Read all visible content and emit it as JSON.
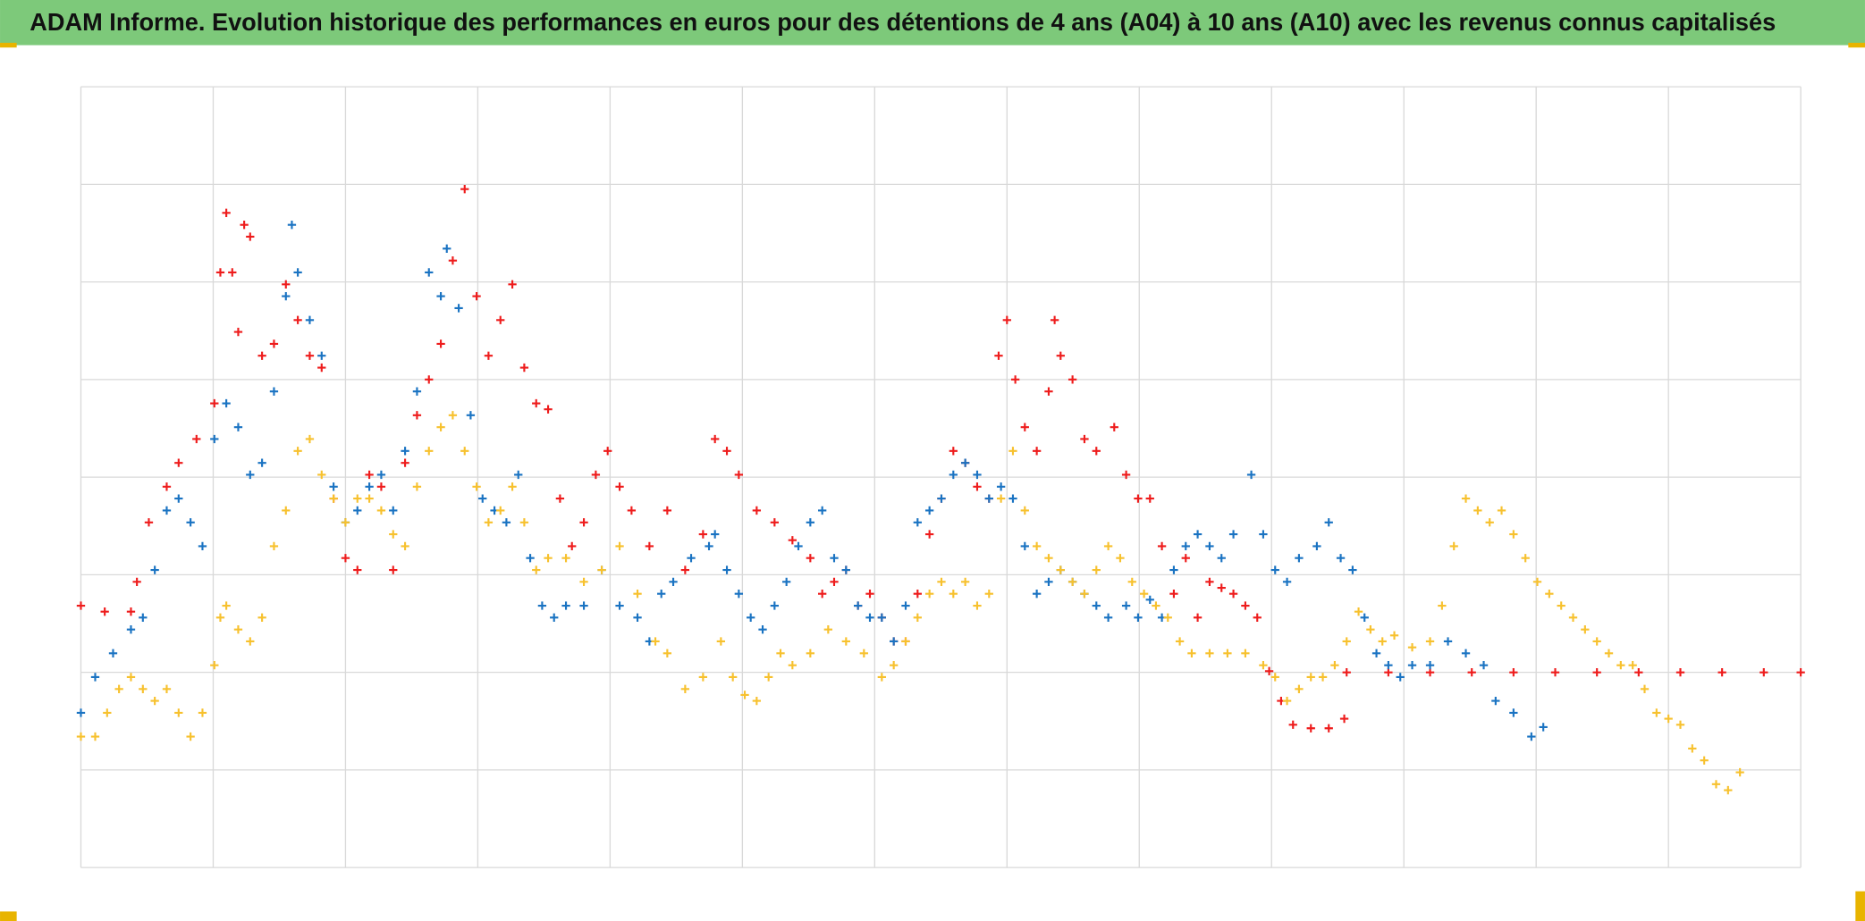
{
  "chart_data": {
    "type": "scatter",
    "title": "ADAM Informe. Evolution historique des performances en euros pour des détentions de 4 ans (A04) à 10 ans (A10) avec les revenus connus capitalisés",
    "xlim": [
      0,
      1443
    ],
    "xticks": [
      0,
      111,
      222,
      333,
      444,
      555,
      666,
      777,
      888,
      999,
      1110,
      1221,
      1332,
      1443
    ],
    "ylim": [
      0,
      656
    ],
    "yticks": [
      0,
      82,
      164,
      246,
      328,
      410,
      492,
      574,
      656
    ],
    "grid": true,
    "marker": "plus",
    "series": [
      {
        "color": "#ee1c1c",
        "x": [
          0,
          20,
          42,
          47,
          57,
          72,
          82,
          97,
          112,
          117,
          122,
          127,
          132,
          137,
          142,
          152,
          162,
          172,
          182,
          192,
          202,
          212,
          222,
          232,
          242,
          252,
          262,
          272,
          282,
          292,
          302,
          312,
          322,
          332,
          342,
          352,
          362,
          372,
          382,
          392,
          402,
          412,
          422,
          432,
          442,
          452,
          462,
          477,
          492,
          507,
          522,
          532,
          542,
          552,
          567,
          582,
          597,
          612,
          622,
          632,
          642,
          652,
          662,
          672,
          682,
          692,
          702,
          712,
          722,
          732,
          742,
          752,
          762,
          770,
          777,
          784,
          792,
          802,
          812,
          817,
          822,
          832,
          842,
          852,
          867,
          877,
          887,
          897,
          907,
          917,
          927,
          937,
          947,
          957,
          967,
          977,
          987,
          997,
          1007,
          1017,
          1032,
          1047,
          1060,
          1062,
          1097,
          1132,
          1167,
          1202,
          1237,
          1272,
          1307,
          1342,
          1377,
          1412,
          1443
        ],
        "values": [
          220,
          215,
          215,
          240,
          290,
          320,
          340,
          360,
          390,
          500,
          550,
          500,
          450,
          540,
          530,
          430,
          440,
          490,
          460,
          430,
          420,
          310,
          260,
          250,
          330,
          320,
          250,
          340,
          380,
          410,
          440,
          510,
          570,
          480,
          430,
          460,
          490,
          420,
          390,
          385,
          310,
          270,
          290,
          330,
          350,
          320,
          300,
          270,
          300,
          250,
          280,
          360,
          350,
          330,
          300,
          290,
          275,
          260,
          230,
          240,
          250,
          220,
          230,
          210,
          190,
          190,
          230,
          280,
          310,
          350,
          340,
          320,
          310,
          430,
          460,
          410,
          370,
          350,
          400,
          460,
          430,
          410,
          360,
          350,
          370,
          330,
          310,
          310,
          270,
          230,
          260,
          210,
          240,
          235,
          230,
          220,
          210,
          165,
          140,
          120,
          117,
          117,
          125,
          164,
          164,
          164,
          164,
          164,
          164,
          164,
          164,
          164,
          164,
          164,
          164
        ]
      },
      {
        "color": "#1a73c2",
        "x": [
          0,
          12,
          27,
          42,
          52,
          62,
          72,
          82,
          92,
          102,
          112,
          122,
          132,
          142,
          152,
          162,
          172,
          177,
          182,
          192,
          202,
          212,
          222,
          232,
          242,
          252,
          262,
          272,
          282,
          292,
          302,
          307,
          317,
          327,
          337,
          347,
          357,
          367,
          377,
          387,
          397,
          407,
          422,
          437,
          452,
          467,
          477,
          487,
          497,
          512,
          527,
          532,
          542,
          552,
          562,
          572,
          582,
          592,
          602,
          612,
          622,
          632,
          642,
          652,
          662,
          672,
          682,
          692,
          702,
          712,
          722,
          732,
          742,
          752,
          762,
          772,
          782,
          792,
          802,
          812,
          822,
          832,
          842,
          852,
          862,
          877,
          887,
          897,
          907,
          917,
          927,
          937,
          947,
          957,
          967,
          982,
          992,
          1002,
          1012,
          1022,
          1037,
          1047,
          1057,
          1067,
          1077,
          1087,
          1097,
          1107,
          1117,
          1132,
          1147,
          1162,
          1177,
          1187,
          1202,
          1217,
          1227
        ],
        "values": [
          130,
          160,
          180,
          200,
          210,
          250,
          300,
          310,
          290,
          270,
          360,
          390,
          370,
          330,
          340,
          400,
          480,
          540,
          500,
          460,
          430,
          320,
          290,
          300,
          320,
          330,
          300,
          350,
          400,
          500,
          480,
          520,
          470,
          380,
          310,
          300,
          290,
          330,
          260,
          220,
          210,
          220,
          220,
          250,
          220,
          210,
          190,
          230,
          240,
          260,
          270,
          280,
          250,
          230,
          210,
          200,
          220,
          240,
          270,
          290,
          300,
          260,
          250,
          220,
          210,
          210,
          190,
          220,
          290,
          300,
          310,
          330,
          340,
          330,
          310,
          320,
          310,
          270,
          230,
          240,
          250,
          240,
          230,
          220,
          210,
          220,
          210,
          225,
          210,
          250,
          270,
          280,
          270,
          260,
          280,
          330,
          280,
          250,
          240,
          260,
          270,
          290,
          260,
          250,
          210,
          180,
          170,
          160,
          170,
          170,
          190,
          180,
          170,
          140,
          130,
          110,
          118
        ]
      },
      {
        "color": "#f7c12e",
        "x": [
          0,
          12,
          22,
          32,
          42,
          52,
          62,
          72,
          82,
          92,
          102,
          112,
          117,
          122,
          132,
          142,
          152,
          162,
          172,
          182,
          192,
          202,
          212,
          222,
          232,
          242,
          252,
          262,
          272,
          282,
          292,
          302,
          312,
          322,
          332,
          342,
          352,
          362,
          372,
          382,
          392,
          407,
          422,
          437,
          452,
          467,
          482,
          492,
          507,
          522,
          537,
          547,
          557,
          567,
          577,
          587,
          597,
          612,
          627,
          642,
          657,
          672,
          682,
          692,
          702,
          712,
          722,
          732,
          742,
          752,
          762,
          772,
          782,
          792,
          802,
          812,
          822,
          832,
          842,
          852,
          862,
          872,
          882,
          892,
          902,
          912,
          922,
          932,
          947,
          962,
          977,
          992,
          1002,
          1012,
          1022,
          1032,
          1042,
          1052,
          1062,
          1072,
          1082,
          1092,
          1102,
          1117,
          1132,
          1142,
          1152,
          1162,
          1172,
          1182,
          1192,
          1202,
          1212,
          1222,
          1232,
          1242,
          1252,
          1262,
          1272,
          1282,
          1292,
          1302,
          1312,
          1322,
          1332,
          1342,
          1352,
          1362,
          1372,
          1382,
          1392
        ],
        "values": [
          110,
          110,
          130,
          150,
          160,
          150,
          140,
          150,
          130,
          110,
          130,
          170,
          210,
          220,
          200,
          190,
          210,
          270,
          300,
          350,
          360,
          330,
          310,
          290,
          310,
          310,
          300,
          280,
          270,
          320,
          350,
          370,
          380,
          350,
          320,
          290,
          300,
          320,
          290,
          250,
          260,
          260,
          240,
          250,
          270,
          230,
          190,
          180,
          150,
          160,
          190,
          160,
          145,
          140,
          160,
          180,
          170,
          180,
          200,
          190,
          180,
          160,
          170,
          190,
          210,
          230,
          240,
          230,
          240,
          220,
          230,
          310,
          350,
          300,
          270,
          260,
          250,
          240,
          230,
          250,
          270,
          260,
          240,
          230,
          220,
          210,
          190,
          180,
          180,
          180,
          180,
          170,
          160,
          140,
          150,
          160,
          160,
          170,
          190,
          215,
          200,
          190,
          195,
          185,
          190,
          220,
          270,
          310,
          300,
          290,
          300,
          280,
          260,
          240,
          230,
          220,
          210,
          200,
          190,
          180,
          170,
          170,
          150,
          130,
          125,
          120,
          100,
          90,
          70,
          65,
          80
        ]
      }
    ]
  }
}
